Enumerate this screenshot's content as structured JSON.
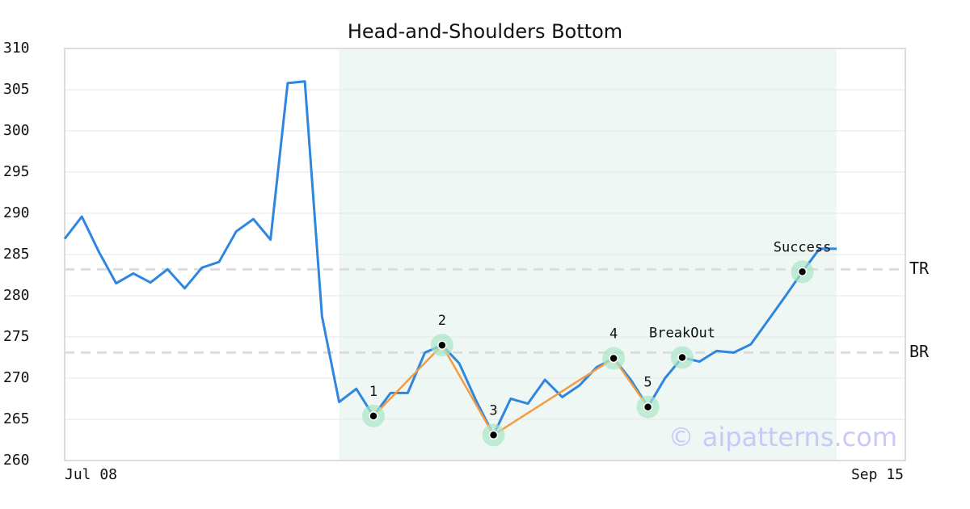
{
  "chart_data": {
    "type": "line",
    "title": "Head-and-Shoulders Bottom",
    "categories": [
      "Jul 08",
      null,
      null,
      null,
      null,
      null,
      null,
      null,
      null,
      null,
      null,
      null,
      null,
      null,
      null,
      null,
      null,
      null,
      null,
      null,
      null,
      null,
      null,
      null,
      null,
      null,
      null,
      null,
      null,
      null,
      null,
      null,
      null,
      null,
      null,
      null,
      null,
      null,
      null,
      null,
      null,
      null,
      null,
      null,
      null,
      "Sep 15"
    ],
    "values": [
      286.9,
      289.6,
      285.3,
      281.5,
      282.7,
      281.6,
      283.2,
      280.9,
      283.4,
      284.1,
      287.8,
      289.3,
      286.8,
      305.8,
      306.0,
      277.5,
      267.1,
      268.7,
      265.4,
      268.2,
      268.2,
      273.1,
      274.0,
      271.8,
      267.2,
      263.1,
      267.5,
      266.9,
      269.8,
      267.7,
      269.1,
      271.3,
      272.4,
      269.8,
      266.5,
      270.0,
      272.5,
      272.0,
      273.3,
      273.1,
      274.1,
      277.0,
      279.9,
      282.9,
      285.7,
      285.7
    ],
    "color": "#2e86de",
    "pattern_color": "#f39c45",
    "ylim": [
      260,
      310
    ],
    "yticks": [
      260,
      265,
      270,
      275,
      280,
      285,
      290,
      295,
      300,
      305,
      310
    ],
    "grid": true,
    "highlight_range": [
      16,
      45
    ],
    "pattern_points": [
      {
        "index": 18,
        "label": "1"
      },
      {
        "index": 22,
        "label": "2"
      },
      {
        "index": 25,
        "label": "3"
      },
      {
        "index": 32,
        "label": "4"
      },
      {
        "index": 34,
        "label": "5"
      }
    ],
    "events": [
      {
        "index": 36,
        "label": "BreakOut"
      },
      {
        "index": 43,
        "label": "Success"
      }
    ],
    "reference_lines": [
      {
        "label": "TR",
        "value": 283.2
      },
      {
        "label": "BR",
        "value": 273.1
      }
    ],
    "watermark": "© aipatterns.com"
  }
}
